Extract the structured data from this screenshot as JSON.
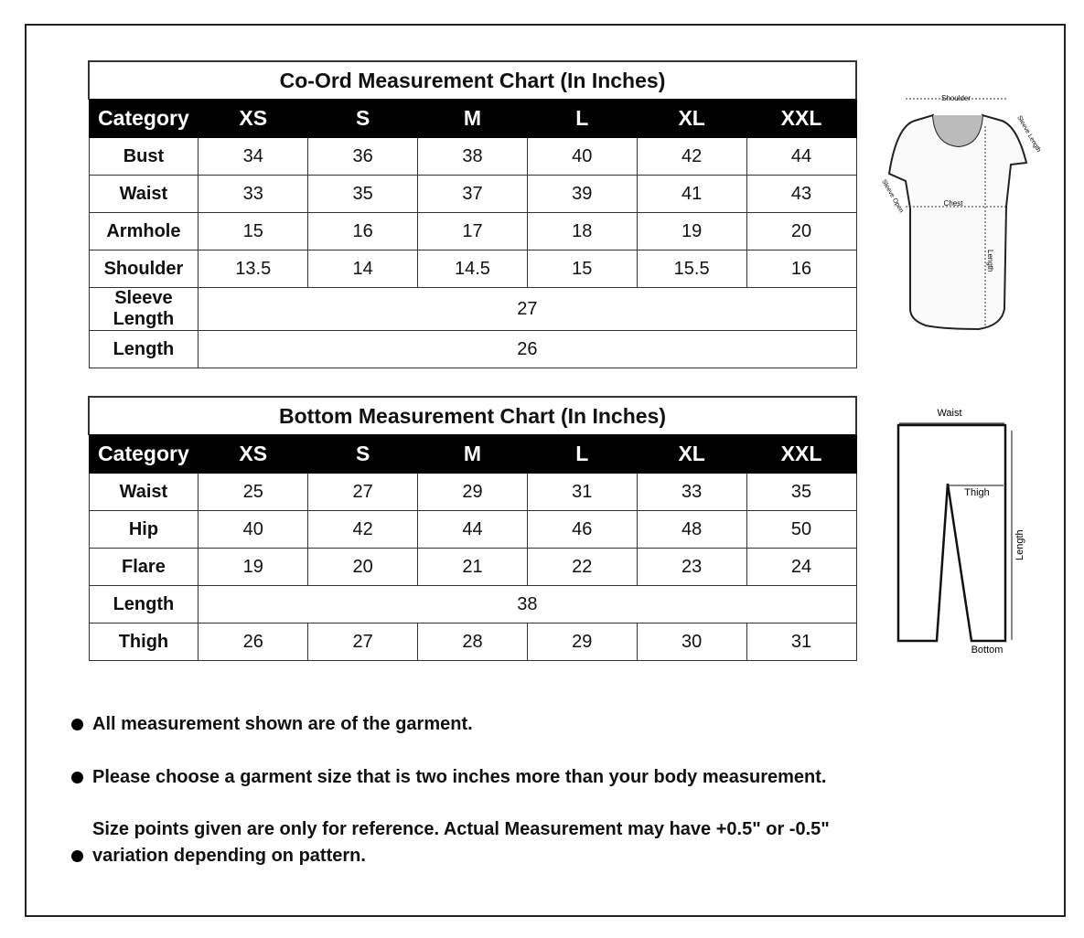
{
  "top_chart": {
    "title": "Co-Ord Measurement Chart (In Inches)",
    "header": [
      "Category",
      "XS",
      "S",
      "M",
      "L",
      "XL",
      "XXL"
    ],
    "rows": [
      {
        "label": "Bust",
        "values": [
          "34",
          "36",
          "38",
          "40",
          "42",
          "44"
        ]
      },
      {
        "label": "Waist",
        "values": [
          "33",
          "35",
          "37",
          "39",
          "41",
          "43"
        ]
      },
      {
        "label": "Armhole",
        "values": [
          "15",
          "16",
          "17",
          "18",
          "19",
          "20"
        ]
      },
      {
        "label": "Shoulder",
        "values": [
          "13.5",
          "14",
          "14.5",
          "15",
          "15.5",
          "16"
        ]
      },
      {
        "label": "Sleeve Length",
        "values": [
          "27"
        ]
      },
      {
        "label": "Length",
        "values": [
          "26"
        ]
      }
    ]
  },
  "bottom_chart": {
    "title": "Bottom Measurement Chart (In Inches)",
    "header": [
      "Category",
      "XS",
      "S",
      "M",
      "L",
      "XL",
      "XXL"
    ],
    "rows": [
      {
        "label": "Waist",
        "values": [
          "25",
          "27",
          "29",
          "31",
          "33",
          "35"
        ]
      },
      {
        "label": "Hip",
        "values": [
          "40",
          "42",
          "44",
          "46",
          "48",
          "50"
        ]
      },
      {
        "label": "Flare",
        "values": [
          "19",
          "20",
          "21",
          "22",
          "23",
          "24"
        ]
      },
      {
        "label": "Length",
        "values": [
          "38"
        ]
      },
      {
        "label": "Thigh",
        "values": [
          "26",
          "27",
          "28",
          "29",
          "30",
          "31"
        ]
      }
    ]
  },
  "top_figure": {
    "labels": {
      "shoulder": "Shoulder",
      "sleeve_length": "Sleeve Length",
      "sleeve_open": "Sleeve Open",
      "chest": "Chest",
      "length": "Length"
    }
  },
  "bottom_figure": {
    "labels": {
      "waist": "Waist",
      "thigh": "Thigh",
      "length": "Length",
      "bottom": "Bottom"
    }
  },
  "notes": [
    "All measurement shown are of the garment.",
    "Please choose a garment size that is two inches more than your body measurement.",
    "Size points given are only for reference. Actual Measurement may have +0.5\" or -0.5\" variation depending on pattern."
  ]
}
